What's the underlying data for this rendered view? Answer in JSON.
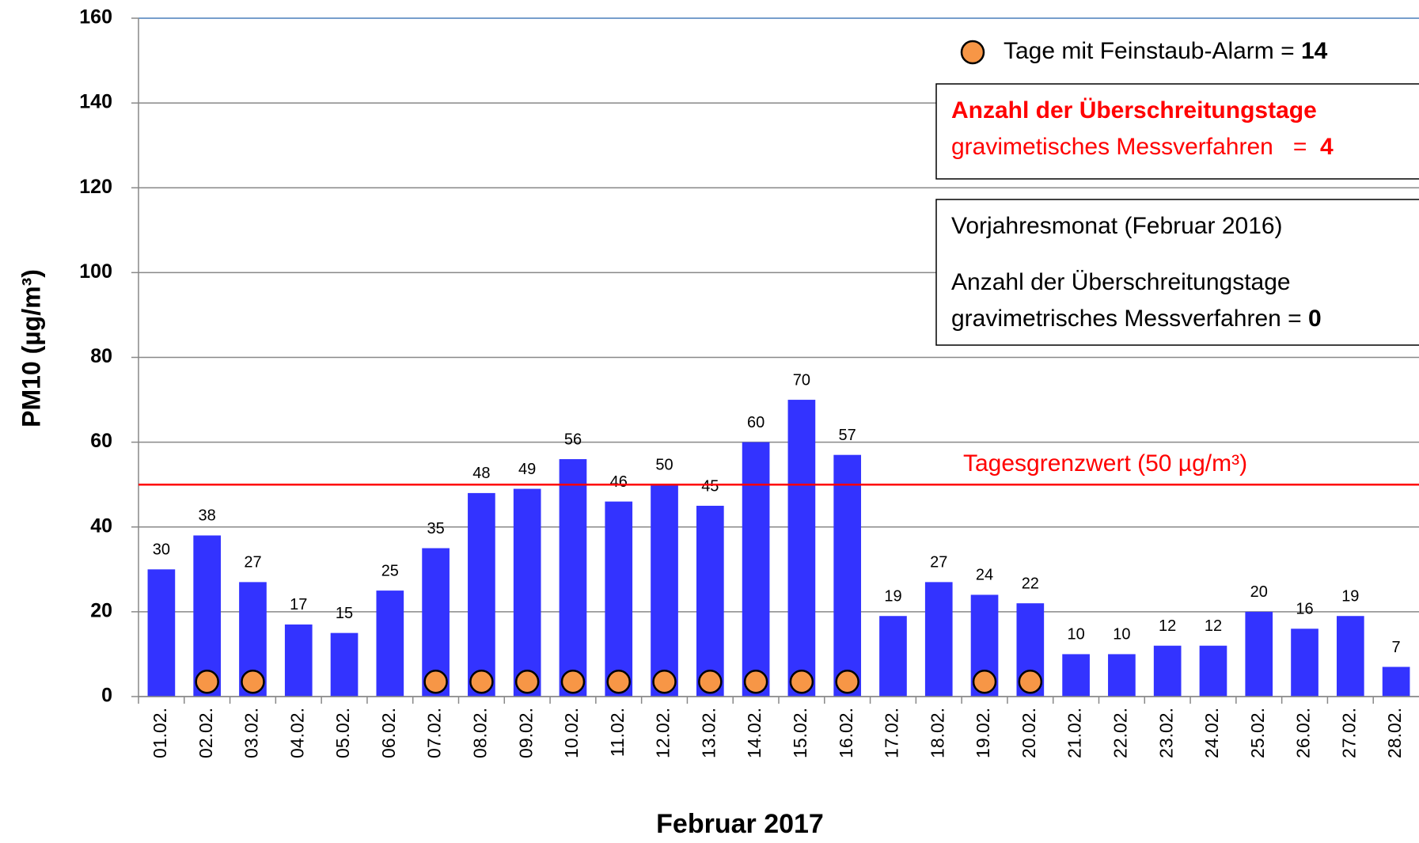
{
  "chart_data": {
    "type": "bar",
    "y_label": "PM10 (µg/m³)",
    "x_label": "Februar 2017",
    "categories": [
      "01.02.",
      "02.02.",
      "03.02.",
      "04.02.",
      "05.02.",
      "06.02.",
      "07.02.",
      "08.02.",
      "09.02.",
      "10.02.",
      "11.02.",
      "12.02.",
      "13.02.",
      "14.02.",
      "15.02.",
      "16.02.",
      "17.02.",
      "18.02.",
      "19.02.",
      "20.02.",
      "21.02.",
      "22.02.",
      "23.02.",
      "24.02.",
      "25.02.",
      "26.02.",
      "27.02.",
      "28.02."
    ],
    "values": [
      30,
      38,
      27,
      17,
      15,
      25,
      35,
      48,
      49,
      56,
      46,
      50,
      45,
      60,
      70,
      57,
      19,
      27,
      24,
      22,
      10,
      10,
      12,
      12,
      20,
      16,
      19,
      7
    ],
    "color": "#3333ff",
    "alarm": {
      "name": "Tage mit Feinstaub-Alarm = ",
      "count": "14",
      "color": "#f79646",
      "values": [
        null,
        3.5,
        3.5,
        null,
        null,
        null,
        3.5,
        3.5,
        3.5,
        3.5,
        3.5,
        3.5,
        3.5,
        3.5,
        3.5,
        3.5,
        null,
        null,
        3.5,
        3.5,
        null,
        null,
        null,
        null,
        null,
        null,
        null,
        null
      ]
    },
    "threshold": {
      "value": 50,
      "label": "Tagesgrenzwert (50 µg/m³)",
      "color": "#ff0000"
    },
    "ylim": [
      0,
      160
    ],
    "yticks": [
      0,
      20,
      40,
      60,
      80,
      100,
      120,
      140,
      160
    ],
    "grid": true,
    "box1": {
      "line1": "Anzahl der Überschreitungstage",
      "line2": "gravimetisches Messverfahren   =  ",
      "count": "4"
    },
    "box2": {
      "line1": "Vorjahresmonat (Februar 2016)",
      "line2": "Anzahl der Überschreitungstage",
      "line3": "gravimetrisches Messverfahren = ",
      "count": "0"
    }
  }
}
